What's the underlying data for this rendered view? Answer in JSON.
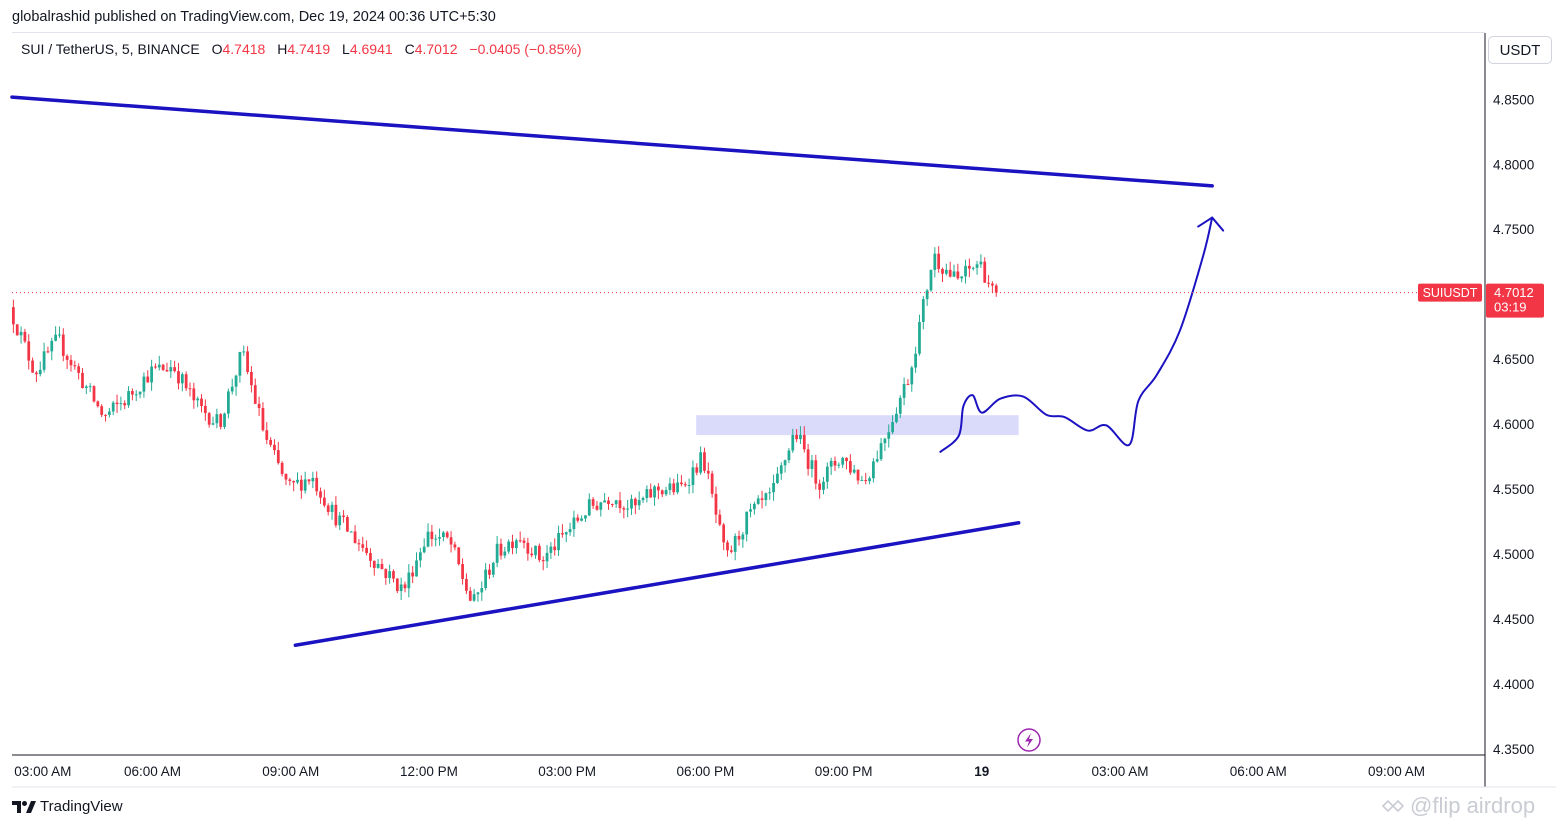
{
  "header": {
    "published_line": "globalrashid published on TradingView.com, Dec 19, 2024 00:36 UTC+5:30"
  },
  "legend": {
    "symbol": "SUI / TetherUS, 5, BINANCE",
    "open_label": "O",
    "open": "4.7418",
    "high_label": "H",
    "high": "4.7419",
    "low_label": "L",
    "low": "4.6941",
    "close_label": "C",
    "close": "4.7012",
    "change": "−0.0405 (−0.85%)"
  },
  "currency_button": "USDT",
  "footer": {
    "brand": "TradingView",
    "watermark": "@flip airdrop"
  },
  "colors": {
    "up": "#22ab94",
    "down": "#f23645",
    "trendline": "#1b12c2",
    "zone": "#d6d6fb",
    "price_badge": "#f23645"
  },
  "chart_data": {
    "type": "candlestick",
    "symbol": "SUIUSDT",
    "interval": "5",
    "y_axis": {
      "ticks": [
        "4.8500",
        "4.8000",
        "4.7500",
        "4.6500",
        "4.6000",
        "4.5500",
        "4.5000",
        "4.4500",
        "4.4000",
        "4.3500"
      ],
      "ylim": [
        4.3452,
        4.9011
      ]
    },
    "x_axis": {
      "ticks": [
        "03:00 AM",
        "06:00 AM",
        "09:00 AM",
        "12:00 PM",
        "03:00 PM",
        "06:00 PM",
        "09:00 PM",
        "19",
        "03:00 AM",
        "06:00 AM",
        "09:00 AM"
      ],
      "tick_hours": [
        3,
        6,
        9,
        12,
        15,
        18,
        21,
        24,
        27,
        30,
        33
      ],
      "xlim_hours": [
        2.95,
        34.9
      ]
    },
    "last_price": {
      "label": "SUIUSDT",
      "value": "4.7012",
      "countdown": "03:19"
    },
    "path_hours": [
      2.95,
      3.5,
      4.0,
      4.5,
      5.0,
      5.5,
      6.0,
      6.5,
      7.0,
      7.5,
      8.0,
      8.5,
      9.0,
      9.5,
      10.0,
      10.5,
      11.0,
      11.5,
      12.0,
      12.5,
      13.0,
      13.5,
      14.0,
      14.5,
      15.0,
      15.5,
      16.0,
      16.5,
      17.0,
      17.5,
      18.0,
      18.5,
      19.0,
      19.5,
      20.0,
      20.5,
      21.0,
      21.5,
      22.0,
      22.5,
      23.0,
      23.5,
      24.0,
      24.3
    ],
    "path_closes": [
      4.69,
      4.64,
      4.665,
      4.635,
      4.605,
      4.62,
      4.64,
      4.645,
      4.615,
      4.6,
      4.655,
      4.59,
      4.55,
      4.56,
      4.53,
      4.51,
      4.49,
      4.472,
      4.515,
      4.51,
      4.46,
      4.5,
      4.515,
      4.495,
      4.515,
      4.535,
      4.545,
      4.535,
      4.55,
      4.55,
      4.575,
      4.495,
      4.53,
      4.545,
      4.595,
      4.555,
      4.575,
      4.555,
      4.595,
      4.64,
      4.73,
      4.71,
      4.725,
      4.7012
    ],
    "trendlines": [
      {
        "from": {
          "hour": 2.95,
          "price": 4.8517
        },
        "to": {
          "hour": 29.0,
          "price": 4.7834
        }
      },
      {
        "from": {
          "hour": 9.1,
          "price": 4.4297
        },
        "to": {
          "hour": 24.8,
          "price": 4.524
        }
      }
    ],
    "zones": [
      {
        "hour_from": 17.8,
        "hour_to": 24.8,
        "price_low": 4.5915,
        "price_high": 4.6068
      }
    ],
    "projection": {
      "hours": [
        23.1,
        23.5,
        23.6,
        23.8,
        24.0,
        24.4,
        24.9,
        25.4,
        25.8,
        26.3,
        26.7,
        27.2,
        27.4,
        27.8,
        28.3,
        28.8,
        29.0
      ],
      "prices": [
        4.5786,
        4.591,
        4.6138,
        4.6222,
        4.6088,
        4.6195,
        4.6212,
        4.6072,
        4.6053,
        4.595,
        4.599,
        4.584,
        4.618,
        4.638,
        4.672,
        4.729,
        4.759
      ]
    }
  }
}
